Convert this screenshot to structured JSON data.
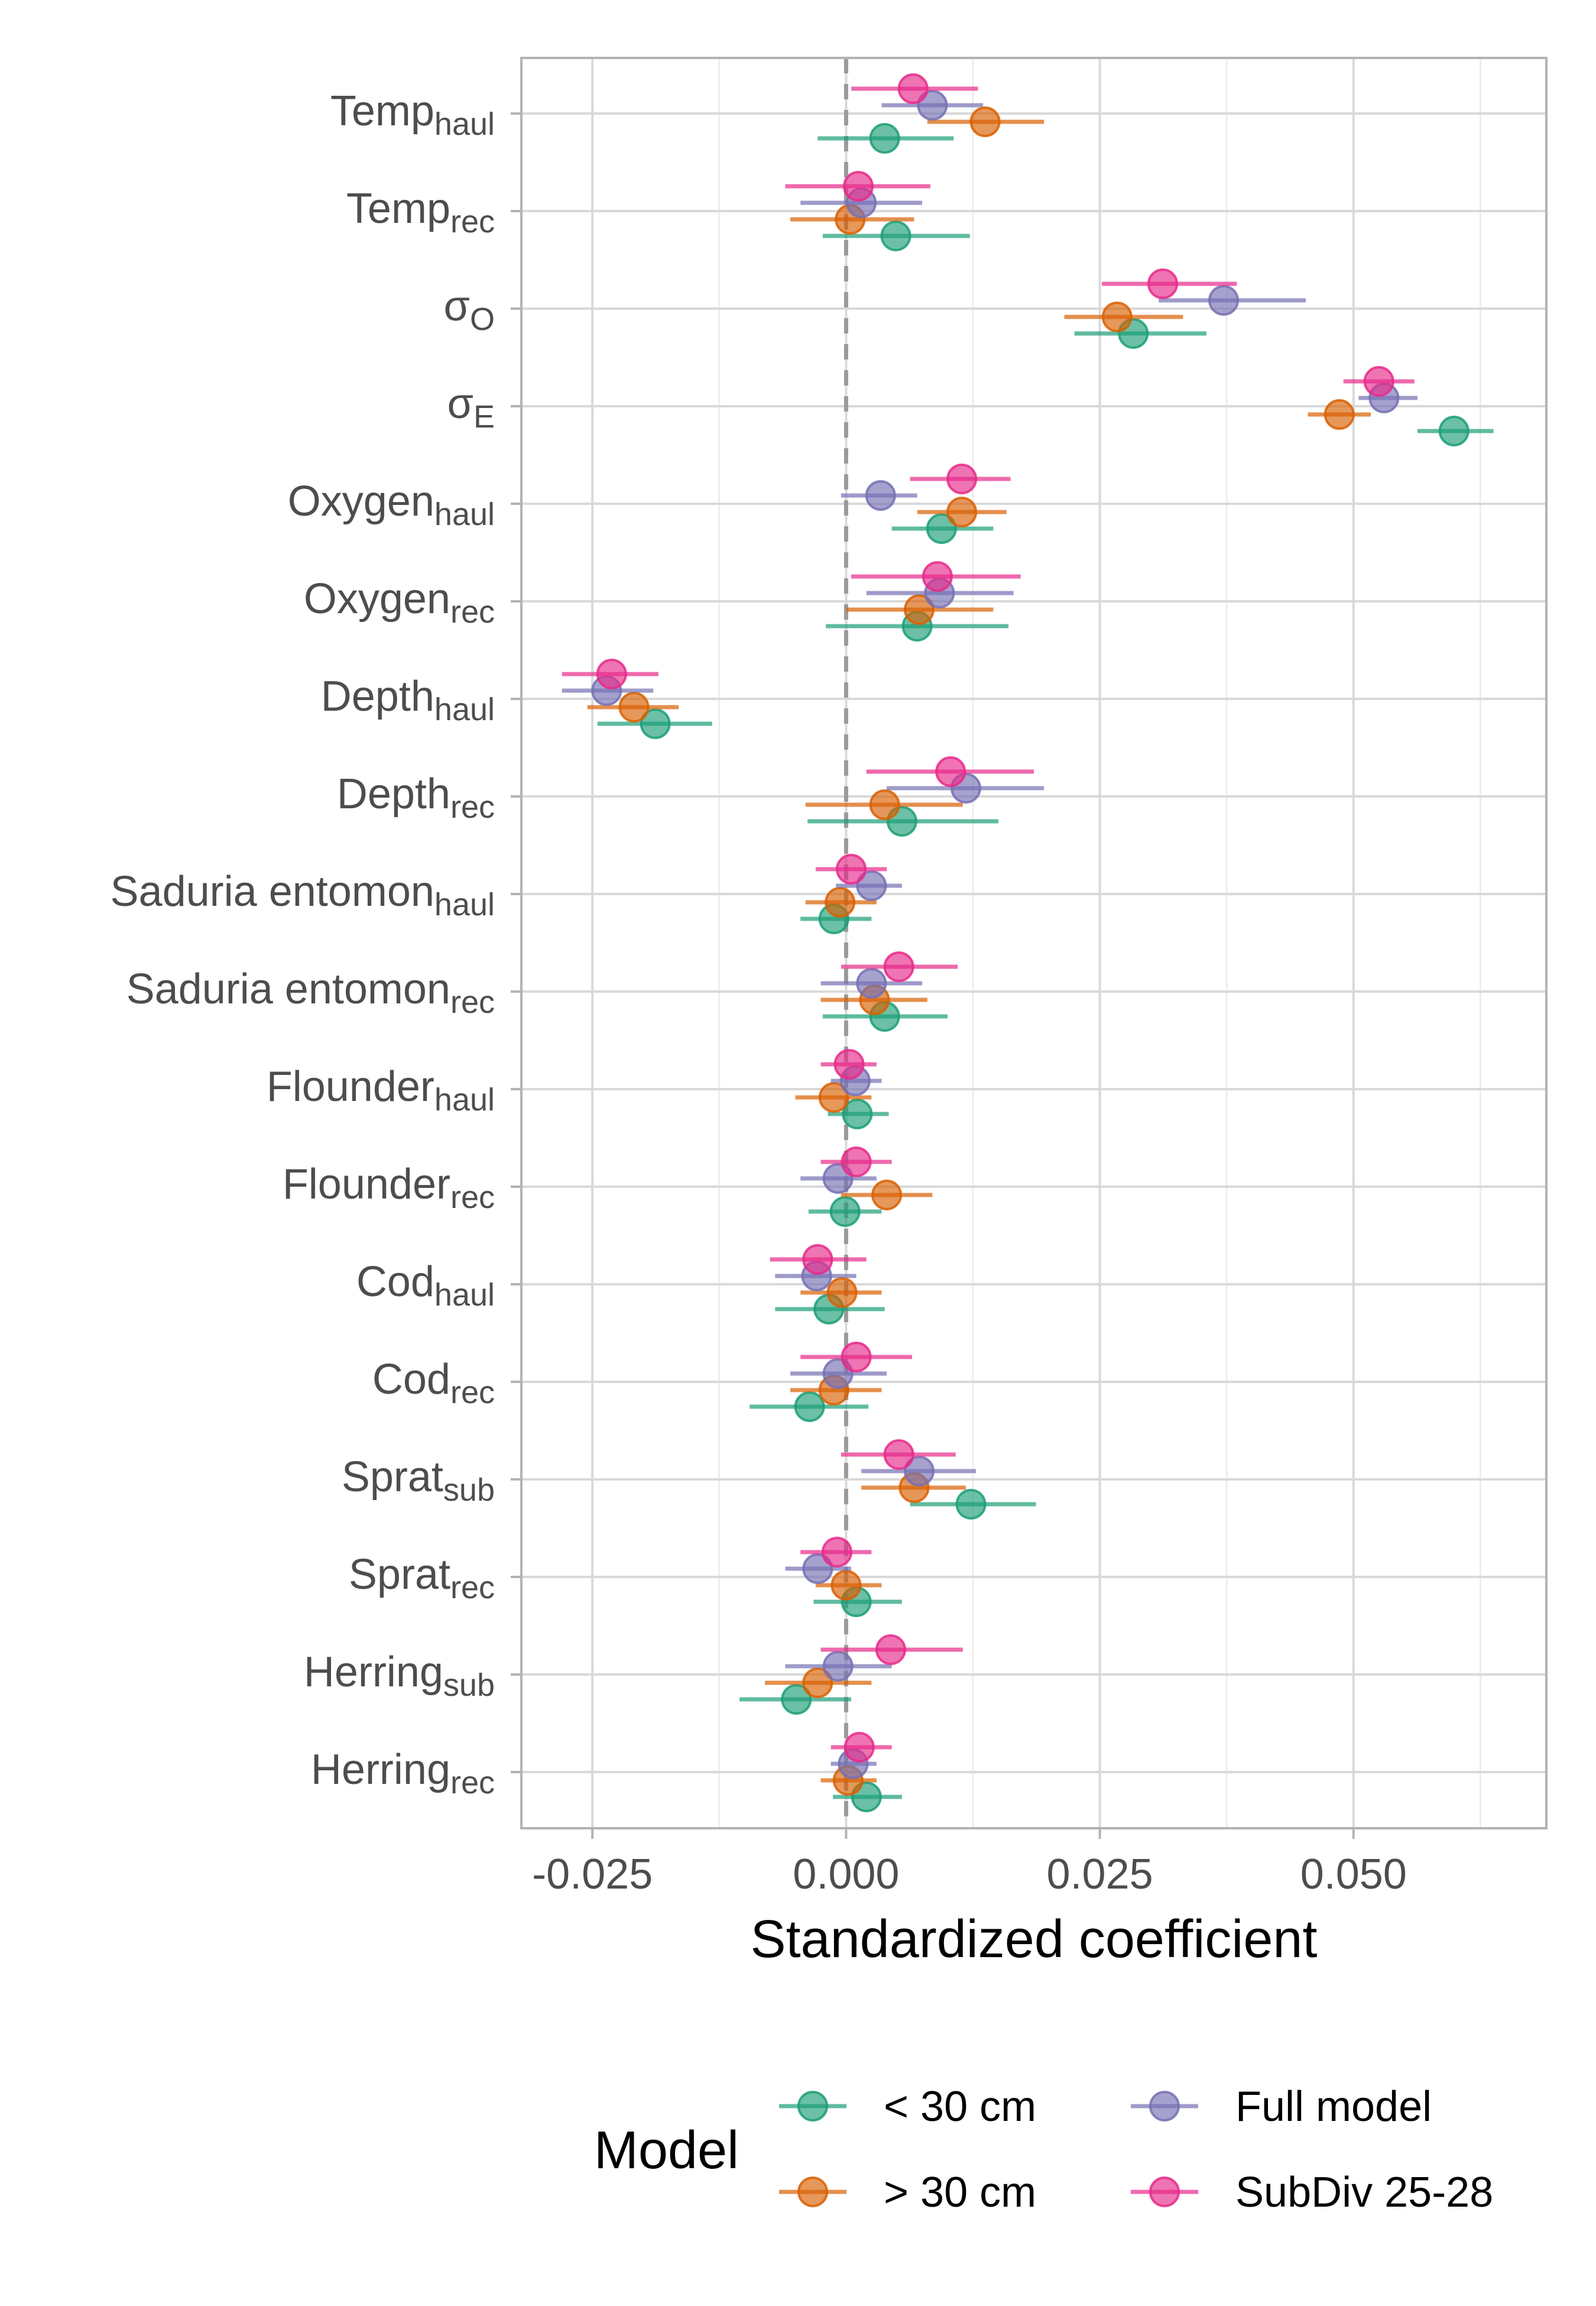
{
  "chart_data": {
    "type": "scatter",
    "subtype": "coefficient-plot-with-error-bars",
    "title": "",
    "xlabel": "Standardized coefficient",
    "ylabel": "",
    "xlim": [
      -0.032,
      0.069
    ],
    "xticks": [
      -0.025,
      0.0,
      0.025,
      0.05
    ],
    "xtick_labels": [
      "-0.025",
      "0.000",
      "0.025",
      "0.050"
    ],
    "reference_line": {
      "x": 0,
      "style": "dashed",
      "color": "#999999"
    },
    "grid": true,
    "legend": {
      "title": "Model",
      "placement": "bottom",
      "entries": [
        "< 30 cm",
        "> 30 cm",
        "Full model",
        "SubDiv 25-28"
      ]
    },
    "categories": [
      {
        "base": "Temp",
        "sub": "haul"
      },
      {
        "base": "Temp",
        "sub": "rec"
      },
      {
        "base": "σ",
        "sub": "O"
      },
      {
        "base": "σ",
        "sub": "E"
      },
      {
        "base": "Oxygen",
        "sub": "haul"
      },
      {
        "base": "Oxygen",
        "sub": "rec"
      },
      {
        "base": "Depth",
        "sub": "haul"
      },
      {
        "base": "Depth",
        "sub": "rec"
      },
      {
        "base": "Saduria entomon",
        "sub": "haul"
      },
      {
        "base": "Saduria entomon",
        "sub": "rec"
      },
      {
        "base": "Flounder",
        "sub": "haul"
      },
      {
        "base": "Flounder",
        "sub": "rec"
      },
      {
        "base": "Cod",
        "sub": "haul"
      },
      {
        "base": "Cod",
        "sub": "rec"
      },
      {
        "base": "Sprat",
        "sub": "sub"
      },
      {
        "base": "Sprat",
        "sub": "rec"
      },
      {
        "base": "Herring",
        "sub": "sub"
      },
      {
        "base": "Herring",
        "sub": "rec"
      }
    ],
    "series": [
      {
        "name": "< 30 cm",
        "color": "#1b9e77",
        "estimates": [
          0.0038,
          0.0049,
          0.0283,
          0.0599,
          0.0094,
          0.007,
          -0.0188,
          0.0055,
          -0.0012,
          0.0038,
          0.0011,
          -0.0001,
          -0.0017,
          -0.0036,
          0.0123,
          0.001,
          -0.0049,
          0.002
        ],
        "lower": [
          -0.0028,
          -0.0023,
          0.0225,
          0.0563,
          0.0045,
          -0.002,
          -0.0245,
          -0.0038,
          -0.0045,
          -0.0023,
          -0.0018,
          -0.0037,
          -0.007,
          -0.0095,
          0.0063,
          -0.0032,
          -0.0105,
          -0.0013
        ],
        "upper": [
          0.0106,
          0.0122,
          0.0355,
          0.0638,
          0.0145,
          0.016,
          -0.0132,
          0.015,
          0.0025,
          0.01,
          0.0042,
          0.0035,
          0.0038,
          0.0022,
          0.0187,
          0.0055,
          0.0005,
          0.0055
        ]
      },
      {
        "name": "> 30 cm",
        "color": "#d95f02",
        "estimates": [
          0.0137,
          0.0004,
          0.0267,
          0.0486,
          0.0114,
          0.0072,
          -0.0209,
          0.0038,
          -0.0006,
          0.0028,
          -0.0012,
          0.004,
          -0.0004,
          -0.0012,
          0.0067,
          0.0,
          -0.0028,
          0.0002
        ],
        "lower": [
          0.008,
          -0.0055,
          0.0215,
          0.0455,
          0.007,
          0.0,
          -0.0255,
          -0.004,
          -0.004,
          -0.0025,
          -0.005,
          -0.0005,
          -0.0045,
          -0.0055,
          0.0015,
          -0.003,
          -0.008,
          -0.0025
        ],
        "upper": [
          0.0195,
          0.0067,
          0.0332,
          0.0517,
          0.0158,
          0.0145,
          -0.0165,
          0.0115,
          0.003,
          0.008,
          0.0025,
          0.0085,
          0.0035,
          0.0035,
          0.0118,
          0.0035,
          0.0025,
          0.003
        ]
      },
      {
        "name": "Full model",
        "color": "#7570b3",
        "estimates": [
          0.0085,
          0.0015,
          0.0372,
          0.053,
          0.0034,
          0.0092,
          -0.0236,
          0.0118,
          0.0025,
          0.0025,
          0.0009,
          -0.0008,
          -0.0029,
          -0.0008,
          0.0072,
          -0.0028,
          -0.0008,
          0.0007
        ],
        "lower": [
          0.0035,
          -0.0045,
          0.0308,
          0.0505,
          -0.0005,
          0.002,
          -0.028,
          0.004,
          -0.001,
          -0.0025,
          -0.0015,
          -0.0045,
          -0.007,
          -0.0055,
          0.0015,
          -0.006,
          -0.006,
          -0.0015
        ],
        "upper": [
          0.0135,
          0.0075,
          0.0453,
          0.0563,
          0.007,
          0.0165,
          -0.019,
          0.0195,
          0.0055,
          0.0075,
          0.0035,
          0.003,
          0.001,
          0.004,
          0.0128,
          0.0005,
          0.0045,
          0.003
        ]
      },
      {
        "name": "SubDiv 25-28",
        "color": "#e7298a",
        "estimates": [
          0.0066,
          0.0012,
          0.0312,
          0.0525,
          0.0114,
          0.009,
          -0.0231,
          0.0103,
          0.0005,
          0.0052,
          0.0003,
          0.001,
          -0.0028,
          0.001,
          0.0052,
          -0.0009,
          0.0044,
          0.0013
        ],
        "lower": [
          0.0005,
          -0.006,
          0.0252,
          0.049,
          0.0063,
          0.0005,
          -0.028,
          0.002,
          -0.003,
          -0.0005,
          -0.0025,
          -0.0025,
          -0.0075,
          -0.0045,
          -0.0005,
          -0.0045,
          -0.0025,
          -0.0015
        ],
        "upper": [
          0.013,
          0.0083,
          0.0385,
          0.056,
          0.0162,
          0.0172,
          -0.0185,
          0.0185,
          0.004,
          0.011,
          0.003,
          0.0045,
          0.002,
          0.0065,
          0.0108,
          0.0025,
          0.0115,
          0.0045
        ]
      }
    ]
  }
}
